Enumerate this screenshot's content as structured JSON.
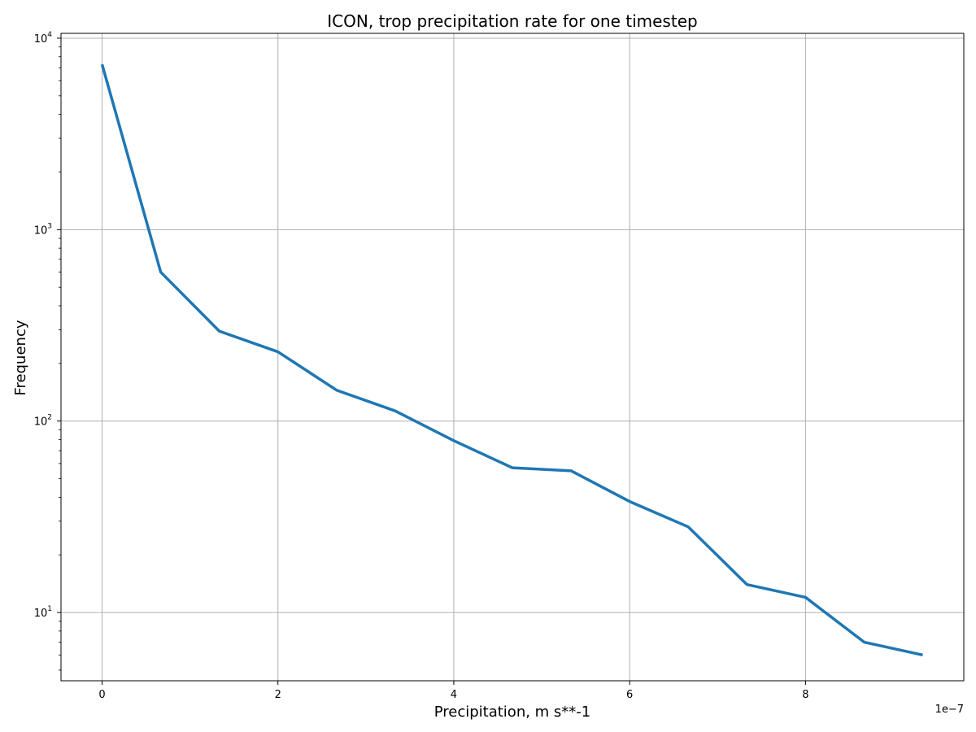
{
  "chart_data": {
    "type": "line",
    "title": "ICON, trop precipitation rate for one timestep",
    "xlabel": "Precipitation, m s**-1",
    "ylabel": "Frequency",
    "x_offset_label": "1e−7",
    "x_multiplier": 1e-07,
    "xlim": [
      -0.467,
      9.8
    ],
    "ylim": [
      4.4,
      10600
    ],
    "yscale": "log",
    "grid": true,
    "x_ticks": [
      0,
      2,
      4,
      6,
      8
    ],
    "x_tick_labels": [
      "0",
      "2",
      "4",
      "6",
      "8"
    ],
    "y_ticks": [
      10,
      100,
      1000,
      10000
    ],
    "y_tick_labels": [
      {
        "base": "10",
        "exp": "1"
      },
      {
        "base": "10",
        "exp": "2"
      },
      {
        "base": "10",
        "exp": "3"
      },
      {
        "base": "10",
        "exp": "4"
      }
    ],
    "line_color": "#1f77b4",
    "series": [
      {
        "x": [
          0,
          0.667,
          1.333,
          2.0,
          2.667,
          3.333,
          4.0,
          4.667,
          5.333,
          6.0,
          6.667,
          7.333,
          8.0,
          8.667,
          9.333
        ],
        "y": [
          7300,
          600,
          295,
          230,
          145,
          113,
          79,
          57,
          55,
          38,
          28,
          14,
          12,
          7,
          6
        ]
      }
    ]
  }
}
